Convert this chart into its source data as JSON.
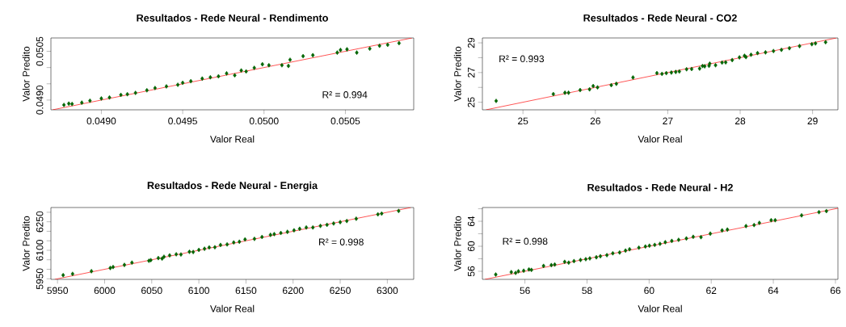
{
  "chart_data": [
    {
      "type": "scatter",
      "title": "Resultados - Rede Neural - Rendimento",
      "xlabel": "Valor Real",
      "ylabel": "Valor Predito",
      "annotations": [
        "R² = 0.994"
      ],
      "xlim": [
        0.04869,
        0.05092
      ],
      "ylim": [
        0.0487,
        0.05091
      ],
      "xticks": [
        {
          "value": 0.049,
          "label": "0.0490"
        },
        {
          "value": 0.0495,
          "label": "0.0495"
        },
        {
          "value": 0.05,
          "label": "0.0500"
        },
        {
          "value": 0.0505,
          "label": "0.0505"
        }
      ],
      "yticks": [
        {
          "value": 0.049,
          "label": "0.0490"
        },
        {
          "value": 0.0495,
          "label": null
        },
        {
          "value": 0.05,
          "label": null
        },
        {
          "value": 0.0505,
          "label": "0.0505"
        }
      ],
      "series": [
        {
          "marker": "diamond",
          "color": "#006400",
          "x": [
            0.04877,
            0.0488,
            0.04882,
            0.04888,
            0.04893,
            0.049,
            0.04905,
            0.04912,
            0.04916,
            0.04921,
            0.04928,
            0.04933,
            0.0494,
            0.04947,
            0.0495,
            0.04955,
            0.04962,
            0.04967,
            0.04972,
            0.04977,
            0.04982,
            0.04986,
            0.04989,
            0.04994,
            0.04999,
            0.05003,
            0.05011,
            0.05015,
            0.05016,
            0.05024,
            0.0503,
            0.05045,
            0.05047,
            0.05051,
            0.05057,
            0.05065,
            0.05071,
            0.05076,
            0.05083
          ],
          "values": [
            0.04885,
            0.04889,
            0.04888,
            0.04892,
            0.04898,
            0.04905,
            0.04908,
            0.04916,
            0.04918,
            0.04922,
            0.0493,
            0.04937,
            0.04942,
            0.04947,
            0.04953,
            0.04958,
            0.04966,
            0.0497,
            0.04973,
            0.04982,
            0.04976,
            0.04991,
            0.04988,
            0.04999,
            0.0501,
            0.05007,
            0.05007,
            0.05005,
            0.05024,
            0.05035,
            0.05038,
            0.05046,
            0.05054,
            0.05056,
            0.05046,
            0.05058,
            0.05067,
            0.0507,
            0.05075
          ]
        },
        {
          "type": "line",
          "marker": "none",
          "color": "#ff0000",
          "x": [
            0.0487,
            0.05091
          ],
          "values": [
            0.0487,
            0.05091
          ]
        }
      ]
    },
    {
      "type": "scatter",
      "title": "Resultados - Rede Neural - CO2",
      "xlabel": "Valor Real",
      "ylabel": "Valor Predito",
      "annotations": [
        "R² = 0.993"
      ],
      "xlim": [
        24.44,
        29.35
      ],
      "ylim": [
        24.49,
        29.33
      ],
      "xticks": [
        25,
        26,
        27,
        28,
        29
      ],
      "yticks": [
        25,
        {
          "value": 26,
          "label": null
        },
        27,
        {
          "value": 28,
          "label": null
        },
        29
      ],
      "series": [
        {
          "marker": "diamond",
          "color": "#006400",
          "x": [
            24.63,
            25.42,
            25.58,
            25.63,
            25.79,
            25.92,
            25.97,
            26.03,
            26.22,
            26.29,
            26.52,
            26.85,
            26.92,
            26.98,
            27.05,
            27.11,
            27.16,
            27.26,
            27.33,
            27.44,
            27.48,
            27.51,
            27.57,
            27.58,
            27.66,
            27.74,
            27.75,
            27.8,
            27.89,
            27.99,
            28.06,
            28.08,
            28.15,
            28.24,
            28.35,
            28.46,
            28.57,
            28.68,
            28.82,
            28.99,
            29.04,
            29.18
          ],
          "values": [
            25.09,
            25.55,
            25.64,
            25.64,
            25.82,
            25.87,
            26.09,
            26.0,
            26.15,
            26.24,
            26.67,
            26.96,
            26.91,
            26.96,
            27.0,
            27.04,
            27.07,
            27.22,
            27.24,
            27.27,
            27.44,
            27.42,
            27.45,
            27.6,
            27.49,
            null,
            27.67,
            27.69,
            27.84,
            28.02,
            28.13,
            28.04,
            28.2,
            28.31,
            28.36,
            28.45,
            28.53,
            28.64,
            28.78,
            28.91,
            28.96,
            29.04
          ]
        },
        {
          "type": "line",
          "marker": "none",
          "color": "#ff0000",
          "x": [
            24.49,
            29.33
          ],
          "values": [
            24.49,
            29.33
          ]
        }
      ]
    },
    {
      "type": "scatter",
      "title": "Resultados - Rede Neural - Energia",
      "xlabel": "Valor Real",
      "ylabel": "Valor Predito",
      "annotations": [
        "R² = 0.998"
      ],
      "xlim": [
        5943,
        6328
      ],
      "ylim": [
        5947,
        6325
      ],
      "xticks": [
        5950,
        6000,
        6050,
        6100,
        6150,
        6200,
        6250,
        6300
      ],
      "yticks": [
        5950,
        {
          "value": 6000,
          "label": null
        },
        {
          "value": 6050,
          "label": null
        },
        6100,
        {
          "value": 6150,
          "label": null
        },
        {
          "value": 6200,
          "label": null
        },
        6250,
        {
          "value": 6300,
          "label": null
        }
      ],
      "series": [
        {
          "marker": "diamond",
          "color": "#006400",
          "x": [
            5956,
            5966,
            5986,
            6006,
            6009,
            6021,
            6029,
            6047,
            6049,
            6057,
            6061,
            6063,
            6069,
            6076,
            6081,
            6090,
            6094,
            6100,
            6106,
            6111,
            6117,
            6123,
            6130,
            6137,
            6143,
            6149,
            6159,
            6167,
            6176,
            6180,
            6187,
            6194,
            6201,
            6207,
            6214,
            6221,
            6229,
            6236,
            6243,
            6250,
            6257,
            6267,
            6290,
            6294,
            6312
          ],
          "values": [
            5969,
            5976,
            5990,
            6007,
            6012,
            6023,
            6035,
            6045,
            6048,
            6059,
            6056,
            6066,
            6073,
            6079,
            6078,
            6092,
            6091,
            6102,
            6108,
            6115,
            6116,
            6128,
            6131,
            6141,
            6145,
            6157,
            6160,
            6170,
            6181,
            6185,
            6191,
            6197,
            6205,
            6213,
            6220,
            6220,
            6228,
            6234,
            6241,
            6248,
            6254,
            6266,
            6289,
            6293,
            6307
          ]
        },
        {
          "type": "line",
          "marker": "none",
          "color": "#ff0000",
          "x": [
            5947,
            6325
          ],
          "values": [
            5947,
            6325
          ]
        }
      ]
    },
    {
      "type": "scatter",
      "title": "Resultados - Rede Neural - H2",
      "xlabel": "Valor Real",
      "ylabel": "Valor Predito",
      "annotations": [
        "R² = 0.998"
      ],
      "xlim": [
        54.63,
        66.08
      ],
      "ylim": [
        54.71,
        66.2
      ],
      "xticks": [
        56,
        58,
        60,
        62,
        64,
        66
      ],
      "yticks": [
        56,
        {
          "value": 58,
          "label": null
        },
        60,
        {
          "value": 62,
          "label": null
        },
        64,
        {
          "value": 66,
          "label": null
        }
      ],
      "series": [
        {
          "marker": "diamond",
          "color": "#006400",
          "x": [
            55.06,
            55.56,
            55.7,
            55.79,
            55.96,
            56.13,
            56.21,
            56.6,
            56.85,
            56.96,
            57.28,
            57.41,
            57.58,
            57.79,
            57.96,
            58.09,
            58.3,
            58.43,
            58.64,
            58.83,
            59.05,
            59.24,
            59.37,
            59.67,
            59.88,
            60.01,
            60.18,
            60.35,
            60.52,
            60.73,
            60.95,
            61.2,
            61.42,
            61.67,
            61.97,
            62.35,
            62.52,
            63.12,
            63.38,
            63.55,
            63.93,
            64.06,
            64.91,
            65.47,
            65.71
          ],
          "values": [
            55.48,
            55.87,
            55.74,
            56.0,
            56.09,
            56.3,
            56.22,
            56.86,
            56.99,
            57.08,
            57.51,
            57.38,
            57.63,
            57.81,
            57.94,
            58.06,
            58.24,
            58.41,
            58.58,
            58.88,
            59.01,
            59.31,
            59.53,
            59.78,
            59.96,
            60.09,
            60.22,
            60.39,
            60.65,
            60.86,
            61.03,
            61.25,
            61.51,
            61.46,
            62.02,
            62.54,
            62.67,
            63.23,
            63.4,
            63.74,
            64.17,
            64.17,
            64.95,
            65.46,
            65.63
          ]
        },
        {
          "type": "line",
          "marker": "none",
          "color": "#ff0000",
          "x": [
            54.71,
            66.08
          ],
          "values": [
            54.71,
            66.08
          ]
        }
      ]
    }
  ]
}
